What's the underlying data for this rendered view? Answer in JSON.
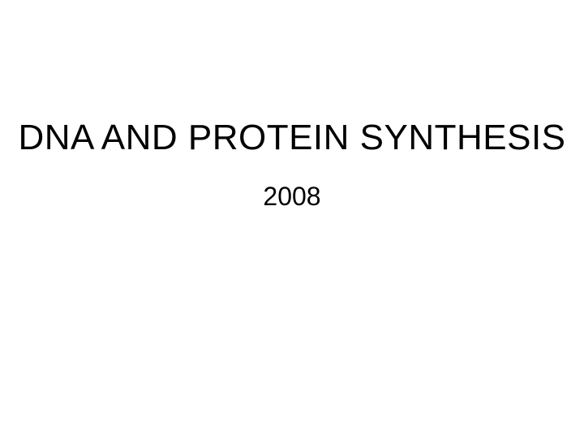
{
  "slide": {
    "title": "DNA AND PROTEIN SYNTHESIS",
    "subtitle": "2008",
    "background_color": "#ffffff",
    "text_color": "#000000",
    "title_fontsize": 44,
    "subtitle_fontsize": 32,
    "font_family": "Arial"
  }
}
